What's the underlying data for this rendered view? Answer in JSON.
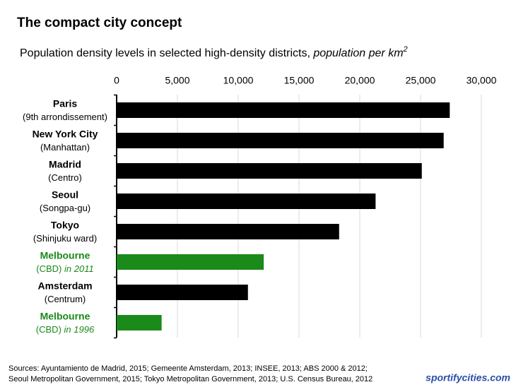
{
  "chart_data": {
    "type": "barh",
    "title": "The compact city concept",
    "subtitle": "Population density levels in selected high-density districts, ",
    "subtitle_unit": "population per km",
    "subtitle_unit_power": "2",
    "categories": [
      {
        "name": "Paris",
        "detail": "(9th arrondissement)"
      },
      {
        "name": "New York City",
        "detail": "(Manhattan)"
      },
      {
        "name": "Madrid",
        "detail": "(Centro)"
      },
      {
        "name": "Seoul",
        "detail": "(Songpa-gu)"
      },
      {
        "name": "Tokyo",
        "detail": "(Shinjuku ward)"
      },
      {
        "name": "Melbourne",
        "detail": "(CBD)",
        "note": "in 2011"
      },
      {
        "name": "Amsterdam",
        "detail": "(Centrum)"
      },
      {
        "name": "Melbourne",
        "detail": "(CBD)",
        "note": "in 1996"
      }
    ],
    "values": [
      27400,
      26900,
      25100,
      21300,
      18300,
      12100,
      10800,
      3700
    ],
    "colors": [
      "#000000",
      "#000000",
      "#000000",
      "#000000",
      "#000000",
      "#1a8a1a",
      "#000000",
      "#1a8a1a"
    ],
    "xlim": [
      0,
      30000
    ],
    "xticks": [
      0,
      {
        "value": 5000,
        "label": "5,000"
      },
      {
        "value": 10000,
        "label": "10,000"
      },
      {
        "value": 15000,
        "label": "15,000"
      },
      {
        "value": 20000,
        "label": "20,000"
      },
      {
        "value": 25000,
        "label": "25,000"
      },
      {
        "value": 30000,
        "label": "30,000"
      }
    ],
    "grid": true,
    "sources": [
      "Sources:  Ayuntamiento de Madrid, 2015; Gemeente Amsterdam, 2013; INSEE, 2013; ABS 2000 & 2012;",
      "Seoul Metropolitan Government, 2015; Tokyo Metropolitan Government, 2013; U.S. Census Bureau, 2012"
    ],
    "brand": "sportifycities.com"
  }
}
